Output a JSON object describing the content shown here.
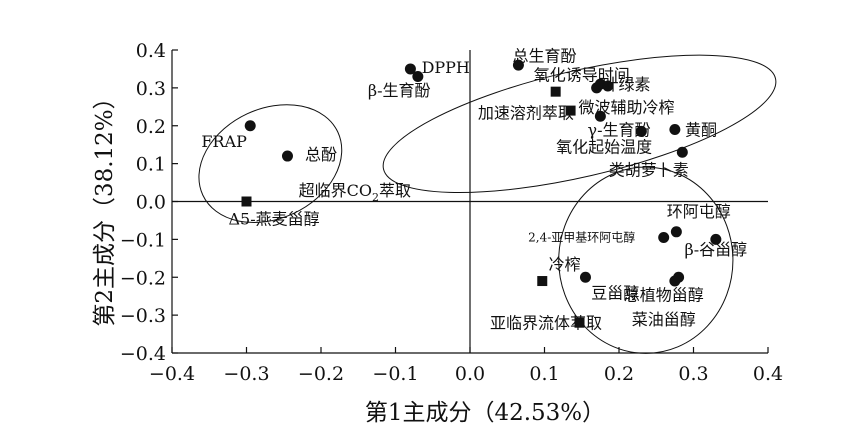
{
  "chart_data": {
    "type": "scatter",
    "xlabel": "第1主成分（42.53%）",
    "ylabel": "第2主成分（38.12%）",
    "xlim": [
      -0.4,
      0.4
    ],
    "ylim": [
      -0.4,
      0.4
    ],
    "xticks": [
      "−0.4",
      "−0.3",
      "−0.2",
      "−0.1",
      "0.0",
      "0.1",
      "0.2",
      "0.3",
      "0.4"
    ],
    "yticks": [
      "0.4",
      "0.3",
      "0.2",
      "0.1",
      "0.0",
      "−0.1",
      "−0.2",
      "−0.3",
      "−0.4"
    ],
    "grid": false,
    "legend": "none",
    "marker_styles": {
      "circle": "filled circle",
      "square": "filled square"
    },
    "groups": [
      {
        "center": [
          0.147,
          0.205
        ],
        "rx": 0.27,
        "ry": 0.14,
        "angle": -13
      },
      {
        "center": [
          -0.268,
          0.1
        ],
        "rx": 0.1,
        "ry": 0.145,
        "angle": -25
      },
      {
        "center": [
          0.236,
          -0.155
        ],
        "rx": 0.125,
        "ry": 0.23,
        "angle": 90
      }
    ],
    "points": [
      {
        "x": -0.08,
        "y": 0.35,
        "marker": "circle",
        "label": "DPPH",
        "label_dx": 0.015,
        "label_dy": 0.005,
        "anchor": "start"
      },
      {
        "x": -0.07,
        "y": 0.33,
        "marker": "circle",
        "label": "β-生育酚",
        "label_dx": -0.025,
        "label_dy": -0.035,
        "anchor": "middle"
      },
      {
        "x": 0.065,
        "y": 0.36,
        "marker": "circle",
        "label": "总生育酚",
        "label_dx": 0.035,
        "label_dy": 0.025,
        "anchor": "middle"
      },
      {
        "x": 0.17,
        "y": 0.3,
        "marker": "circle",
        "label": "氧化诱导时间",
        "label_dx": -0.02,
        "label_dy": 0.035,
        "anchor": "middle"
      },
      {
        "x": 0.175,
        "y": 0.31,
        "marker": "circle",
        "label": "",
        "label_dx": 0,
        "label_dy": 0,
        "anchor": "start"
      },
      {
        "x": 0.185,
        "y": 0.305,
        "marker": "circle",
        "label": "叶绿素",
        "label_dx": 0.025,
        "label_dy": 0.005,
        "anchor": "middle"
      },
      {
        "x": 0.115,
        "y": 0.29,
        "marker": "square",
        "label": "加速溶剂萃取",
        "label_dx": -0.04,
        "label_dy": -0.055,
        "anchor": "middle"
      },
      {
        "x": 0.135,
        "y": 0.24,
        "marker": "square",
        "label": "微波辅助冷榨",
        "label_dx": 0.075,
        "label_dy": 0.01,
        "anchor": "middle"
      },
      {
        "x": 0.175,
        "y": 0.225,
        "marker": "circle",
        "label": "",
        "label_dx": 0,
        "label_dy": 0,
        "anchor": "start"
      },
      {
        "x": 0.23,
        "y": 0.185,
        "marker": "circle",
        "label": "γ-生育酚",
        "label_dx": -0.03,
        "label_dy": 0.005,
        "anchor": "middle"
      },
      {
        "x": 0.275,
        "y": 0.19,
        "marker": "circle",
        "label": "黄酮",
        "label_dx": 0.035,
        "label_dy": 0,
        "anchor": "middle"
      },
      {
        "x": 0.285,
        "y": 0.13,
        "marker": "circle",
        "label": "氧化起始温度",
        "label_dx": -0.105,
        "label_dy": 0.015,
        "anchor": "middle"
      },
      {
        "x": 0.285,
        "y": 0.13,
        "marker": "none",
        "label": "类胡萝卜素",
        "label_dx": -0.045,
        "label_dy": -0.045,
        "anchor": "middle"
      },
      {
        "x": -0.295,
        "y": 0.2,
        "marker": "circle",
        "label": "FRAP",
        "label_dx": -0.035,
        "label_dy": -0.04,
        "anchor": "middle"
      },
      {
        "x": -0.245,
        "y": 0.12,
        "marker": "circle",
        "label": "总酚",
        "label_dx": 0.045,
        "label_dy": 0.005,
        "anchor": "middle"
      },
      {
        "x": -0.3,
        "y": 0.0,
        "marker": "square",
        "label": "",
        "label_dx": 0,
        "label_dy": 0,
        "anchor": "start"
      },
      {
        "x": -0.3,
        "y": 0.0,
        "marker": "none",
        "label": "Δ5-燕麦甾醇",
        "label_dx": 0.037,
        "label_dy": -0.045,
        "anchor": "middle"
      },
      {
        "x": 0.26,
        "y": -0.095,
        "marker": "circle",
        "label": "2,4-亚甲基环阿屯醇",
        "label_dx": -0.11,
        "label_dy": 0.005,
        "anchor": "middle",
        "small": true
      },
      {
        "x": 0.277,
        "y": -0.08,
        "marker": "circle",
        "label": "环阿屯醇",
        "label_dx": 0.03,
        "label_dy": 0.055,
        "anchor": "middle"
      },
      {
        "x": 0.33,
        "y": -0.1,
        "marker": "circle",
        "label": "β-谷甾醇",
        "label_dx": 0.0,
        "label_dy": -0.025,
        "anchor": "middle"
      },
      {
        "x": 0.155,
        "y": -0.2,
        "marker": "circle",
        "label": "豆甾醇",
        "label_dx": 0.04,
        "label_dy": -0.04,
        "anchor": "middle"
      },
      {
        "x": 0.097,
        "y": -0.21,
        "marker": "square",
        "label": "冷榨",
        "label_dx": 0.03,
        "label_dy": 0.045,
        "anchor": "middle"
      },
      {
        "x": 0.275,
        "y": -0.21,
        "marker": "circle",
        "label": "",
        "label_dx": 0,
        "label_dy": 0,
        "anchor": "start"
      },
      {
        "x": 0.28,
        "y": -0.2,
        "marker": "circle",
        "label": "总植物甾醇",
        "label_dx": -0.02,
        "label_dy": -0.045,
        "anchor": "middle"
      },
      {
        "x": 0.28,
        "y": -0.2,
        "marker": "none",
        "label": "菜油甾醇",
        "label_dx": -0.02,
        "label_dy": -0.11,
        "anchor": "middle"
      },
      {
        "x": 0.147,
        "y": -0.32,
        "marker": "square",
        "label": "亚临界流体萃取",
        "label_dx": -0.045,
        "label_dy": 0.0,
        "anchor": "middle"
      }
    ],
    "extra_label": {
      "text_pre": "超临界CO",
      "text_sub": "2",
      "text_post": "萃取",
      "x": -0.23,
      "y": 0.03
    }
  }
}
